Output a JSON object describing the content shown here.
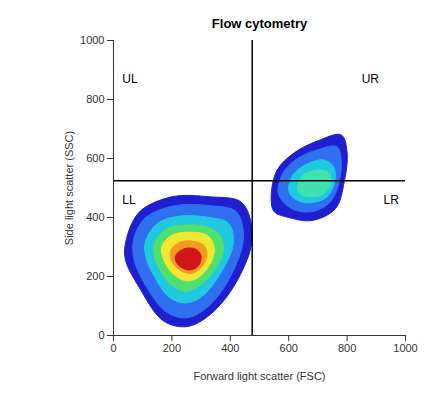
{
  "chart_data": {
    "type": "density_scatter",
    "title": "Flow cytometry",
    "x_label": "Forward light scatter (FSC)",
    "y_label": "Side light scatter (SSC)",
    "xlim": [
      0,
      1000
    ],
    "ylim": [
      0,
      1000
    ],
    "xticks": [
      0,
      200,
      400,
      600,
      800,
      1000
    ],
    "yticks": [
      0,
      200,
      400,
      600,
      800,
      1000
    ],
    "quadrant_lines": {
      "x": 475,
      "y": 525
    },
    "quadrant_labels": [
      {
        "text": "UL",
        "x": 30,
        "y": 870
      },
      {
        "text": "UR",
        "x": 850,
        "y": 870
      },
      {
        "text": "LL",
        "x": 30,
        "y": 460
      },
      {
        "text": "LR",
        "x": 925,
        "y": 460
      }
    ],
    "clusters": [
      {
        "levels": [
          {
            "color": "#1f1fd0",
            "points": [
              [
                45,
                330
              ],
              [
                90,
                420
              ],
              [
                200,
                470
              ],
              [
                330,
                470
              ],
              [
                440,
                450
              ],
              [
                475,
                330
              ],
              [
                420,
                180
              ],
              [
                330,
                70
              ],
              [
                250,
                30
              ],
              [
                170,
                50
              ],
              [
                90,
                160
              ],
              [
                40,
                260
              ]
            ]
          },
          {
            "color": "#2f6ff0",
            "points": [
              [
                70,
                330
              ],
              [
                110,
                400
              ],
              [
                210,
                440
              ],
              [
                330,
                440
              ],
              [
                420,
                420
              ],
              [
                445,
                330
              ],
              [
                395,
                190
              ],
              [
                320,
                95
              ],
              [
                250,
                60
              ],
              [
                180,
                80
              ],
              [
                110,
                170
              ],
              [
                70,
                260
              ]
            ]
          },
          {
            "color": "#20c8e0",
            "points": [
              [
                110,
                320
              ],
              [
                150,
                380
              ],
              [
                230,
                405
              ],
              [
                330,
                400
              ],
              [
                395,
                380
              ],
              [
                410,
                310
              ],
              [
                360,
                200
              ],
              [
                300,
                130
              ],
              [
                245,
                110
              ],
              [
                190,
                130
              ],
              [
                140,
                200
              ],
              [
                110,
                270
              ]
            ]
          },
          {
            "color": "#50e070",
            "points": [
              [
                140,
                310
              ],
              [
                180,
                360
              ],
              [
                250,
                375
              ],
              [
                330,
                365
              ],
              [
                370,
                330
              ],
              [
                375,
                280
              ],
              [
                330,
                200
              ],
              [
                280,
                160
              ],
              [
                240,
                150
              ],
              [
                200,
                170
              ],
              [
                160,
                220
              ],
              [
                140,
                270
              ]
            ]
          },
          {
            "color": "#f0e830",
            "points": [
              [
                165,
                300
              ],
              [
                200,
                340
              ],
              [
                260,
                350
              ],
              [
                320,
                340
              ],
              [
                345,
                300
              ],
              [
                335,
                250
              ],
              [
                295,
                200
              ],
              [
                255,
                185
              ],
              [
                215,
                200
              ],
              [
                180,
                240
              ]
            ]
          },
          {
            "color": "#f59a20",
            "points": [
              [
                195,
                285
              ],
              [
                225,
                315
              ],
              [
                270,
                320
              ],
              [
                310,
                305
              ],
              [
                320,
                270
              ],
              [
                300,
                230
              ],
              [
                265,
                210
              ],
              [
                230,
                220
              ],
              [
                200,
                250
              ]
            ]
          },
          {
            "color": "#d0161a",
            "points": [
              [
                215,
                275
              ],
              [
                245,
                295
              ],
              [
                280,
                293
              ],
              [
                300,
                270
              ],
              [
                290,
                235
              ],
              [
                260,
                222
              ],
              [
                230,
                232
              ],
              [
                212,
                255
              ]
            ]
          }
        ]
      },
      {
        "levels": [
          {
            "color": "#1f1fd0",
            "points": [
              [
                540,
                470
              ],
              [
                560,
                560
              ],
              [
                620,
                620
              ],
              [
                700,
                660
              ],
              [
                780,
                680
              ],
              [
                800,
                620
              ],
              [
                790,
                520
              ],
              [
                760,
                430
              ],
              [
                680,
                390
              ],
              [
                600,
                400
              ],
              [
                550,
                420
              ]
            ]
          },
          {
            "color": "#2f6ff0",
            "points": [
              [
                565,
                480
              ],
              [
                580,
                550
              ],
              [
                630,
                600
              ],
              [
                700,
                630
              ],
              [
                765,
                640
              ],
              [
                780,
                590
              ],
              [
                770,
                510
              ],
              [
                740,
                450
              ],
              [
                680,
                420
              ],
              [
                610,
                430
              ]
            ]
          },
          {
            "color": "#20c8e0",
            "points": [
              [
                600,
                490
              ],
              [
                615,
                545
              ],
              [
                660,
                580
              ],
              [
                720,
                595
              ],
              [
                755,
                570
              ],
              [
                755,
                510
              ],
              [
                725,
                465
              ],
              [
                670,
                450
              ],
              [
                625,
                460
              ]
            ]
          },
          {
            "color": "#40e0b0",
            "points": [
              [
                630,
                500
              ],
              [
                645,
                540
              ],
              [
                690,
                560
              ],
              [
                735,
                555
              ],
              [
                745,
                520
              ],
              [
                720,
                480
              ],
              [
                675,
                470
              ],
              [
                640,
                480
              ]
            ]
          }
        ]
      }
    ]
  }
}
